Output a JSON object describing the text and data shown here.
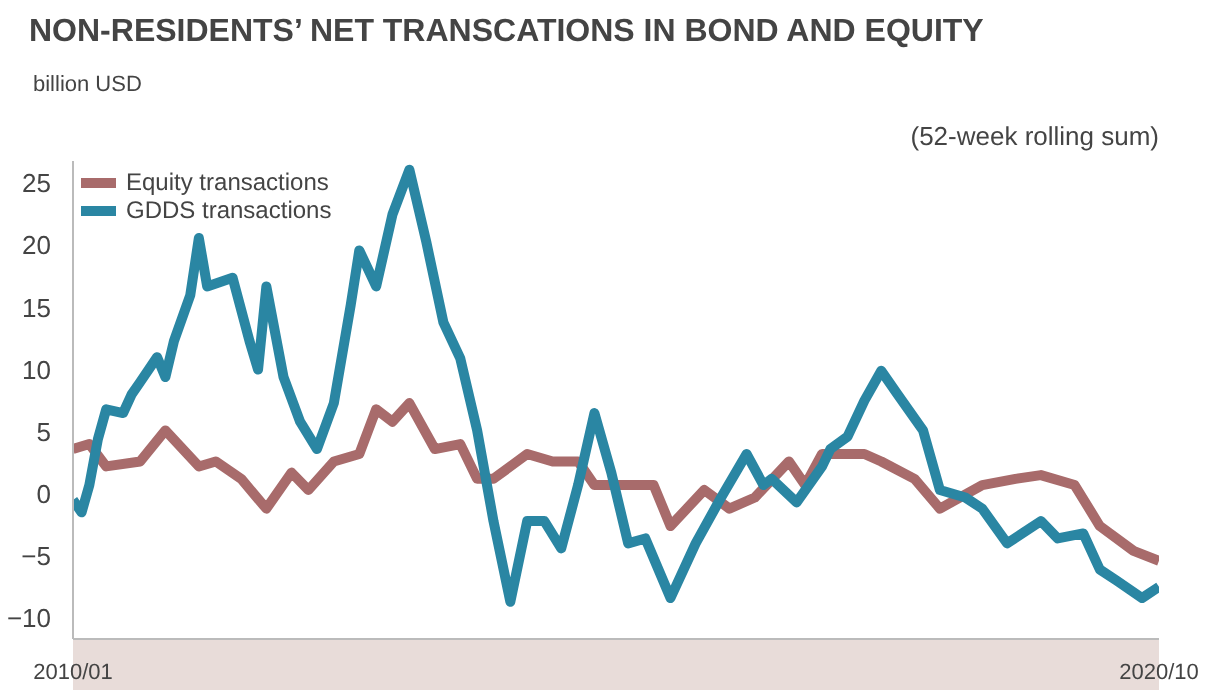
{
  "chart_data": {
    "type": "line",
    "title": "NON-RESIDENTS’ NET TRANSCATIONS IN BOND AND EQUITY",
    "subtitle": "(52-week rolling sum)",
    "ylabel": "billion USD",
    "xlim": [
      "2010-01",
      "2020-10"
    ],
    "xticks": [
      {
        "value": "2010-01",
        "label": "2010/01"
      },
      {
        "value": "2020-10",
        "label": "2020/10"
      }
    ],
    "ylim": [
      -11.7,
      26.8
    ],
    "yticks": [
      -10,
      -5,
      0,
      5,
      10,
      15,
      20,
      25
    ],
    "grid": false,
    "legend": "top left",
    "line_style": "solid",
    "series": [
      {
        "name": "Equity transactions",
        "color": "#a86b6b",
        "x": [
          "2010-01",
          "2010-03",
          "2010-05",
          "2010-09",
          "2010-12",
          "2011-04",
          "2011-06",
          "2011-09",
          "2011-12",
          "2012-03",
          "2012-05",
          "2012-08",
          "2012-11",
          "2013-01",
          "2013-03",
          "2013-05",
          "2013-08",
          "2013-11",
          "2014-01",
          "2014-03",
          "2014-07",
          "2014-10",
          "2015-01",
          "2015-03",
          "2015-07",
          "2015-10",
          "2015-12",
          "2016-04",
          "2016-07",
          "2016-10",
          "2017-02",
          "2017-04",
          "2017-06",
          "2017-11",
          "2018-01",
          "2018-05",
          "2018-08",
          "2019-01",
          "2019-05",
          "2019-08",
          "2019-12",
          "2020-03",
          "2020-07",
          "2020-10"
        ],
        "values": [
          3.6,
          4,
          2.2,
          2.6,
          5.1,
          2.2,
          2.6,
          1.2,
          -1.2,
          1.7,
          0.3,
          2.6,
          3.2,
          6.8,
          5.8,
          7.3,
          3.6,
          4,
          1.2,
          1.2,
          3.2,
          2.6,
          2.6,
          0.7,
          0.7,
          0.7,
          -2.6,
          0.3,
          -1.2,
          -0.3,
          2.6,
          0.7,
          3.2,
          3.2,
          2.6,
          1.2,
          -1.2,
          0.7,
          1.2,
          1.5,
          0.7,
          -2.6,
          -4.6,
          -5.4
        ]
      },
      {
        "name": "GDDS transactions",
        "color": "#2a86a3",
        "x": [
          "2010-01",
          "2010-02",
          "2010-03",
          "2010-04",
          "2010-05",
          "2010-07",
          "2010-08",
          "2010-09",
          "2010-11",
          "2010-12",
          "2011-01",
          "2011-03",
          "2011-04",
          "2011-05",
          "2011-08",
          "2011-10",
          "2011-11",
          "2011-12",
          "2012-02",
          "2012-04",
          "2012-06",
          "2012-08",
          "2012-10",
          "2012-11",
          "2013-01",
          "2013-03",
          "2013-05",
          "2013-07",
          "2013-09",
          "2013-11",
          "2014-01",
          "2014-03",
          "2014-05",
          "2014-07",
          "2014-09",
          "2014-11",
          "2015-01",
          "2015-03",
          "2015-05",
          "2015-07",
          "2015-09",
          "2015-12",
          "2016-03",
          "2016-06",
          "2016-09",
          "2016-11",
          "2016-12",
          "2017-03",
          "2017-06",
          "2017-07",
          "2017-09",
          "2017-11",
          "2018-01",
          "2018-03",
          "2018-06",
          "2018-08",
          "2018-11",
          "2019-01",
          "2019-04",
          "2019-08",
          "2019-10",
          "2020-01",
          "2020-03",
          "2020-05",
          "2020-08",
          "2020-10"
        ],
        "values": [
          -0.5,
          -1.5,
          0.7,
          4.4,
          6.8,
          6.5,
          8,
          9,
          11,
          9.4,
          12.3,
          16,
          20.6,
          16.7,
          17.4,
          12.3,
          10,
          16.7,
          9.4,
          5.8,
          3.6,
          7.3,
          15.2,
          19.6,
          16.7,
          22.5,
          26.1,
          20.3,
          13.8,
          10.9,
          5.1,
          -2.2,
          -8.7,
          -2.2,
          -2.2,
          -4.4,
          0.7,
          6.5,
          1.7,
          -4,
          -3.6,
          -8.4,
          -4,
          -0.3,
          3.2,
          0.7,
          1.2,
          -0.7,
          2.2,
          3.6,
          4.6,
          7.5,
          9.9,
          8,
          5.1,
          0.3,
          -0.3,
          -1.2,
          -4,
          -2.2,
          -3.6,
          -3.2,
          -6.1,
          -7,
          -8.4,
          -7.5
        ]
      }
    ]
  }
}
